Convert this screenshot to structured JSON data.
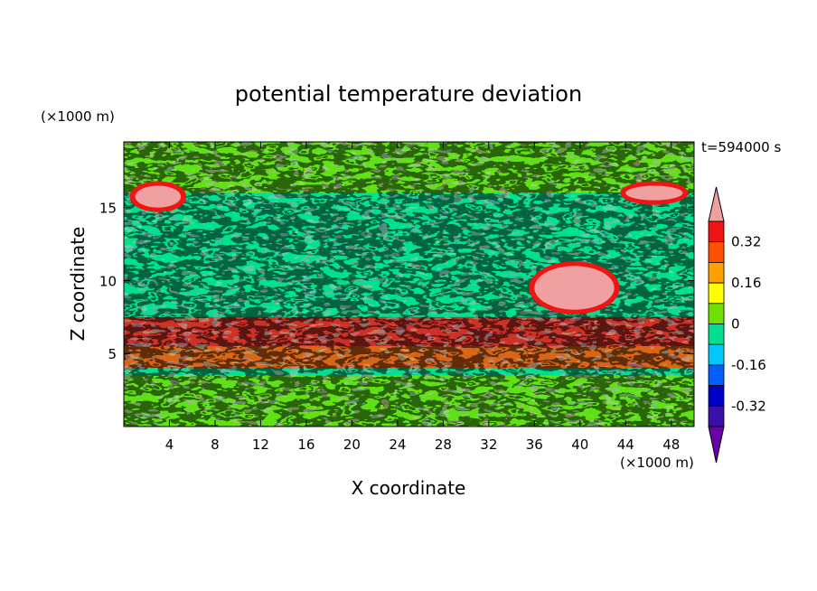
{
  "chart_data": {
    "type": "heatmap",
    "title": "potential temperature deviation",
    "xlabel": "X coordinate",
    "ylabel": "Z coordinate",
    "x_unit": "(×1000 m)",
    "y_unit": "(×1000 m)",
    "time_label": "t=594000 s",
    "xlim": [
      0,
      50
    ],
    "ylim": [
      0,
      19.5
    ],
    "x_ticks": [
      4,
      8,
      12,
      16,
      20,
      24,
      28,
      32,
      36,
      40,
      44,
      48
    ],
    "y_ticks": [
      5,
      10,
      15
    ],
    "grid": false,
    "colorbar": {
      "orientation": "vertical",
      "placement": "right",
      "levels": [
        -0.4,
        -0.32,
        -0.24,
        -0.16,
        -0.08,
        0,
        0.08,
        0.16,
        0.24,
        0.32,
        0.4
      ],
      "labels": [
        "0.32",
        "0.16",
        "0",
        "-0.16",
        "-0.32"
      ],
      "label_values": [
        0.32,
        0.16,
        0,
        -0.16,
        -0.32
      ],
      "colors": [
        "#6a00a8",
        "#3b10a8",
        "#0000c8",
        "#0060ff",
        "#00c8ff",
        "#00e090",
        "#70e000",
        "#ffff00",
        "#ffa000",
        "#ff5000",
        "#f01414",
        "#f0a0a0"
      ],
      "extend": "both"
    },
    "field_summary": [
      {
        "z_range": [
          16,
          19.5
        ],
        "value": 0.02
      },
      {
        "z_range": [
          9,
          16
        ],
        "value": 0.0
      },
      {
        "z_range": [
          5.5,
          7.5
        ],
        "value": 0.35
      },
      {
        "z_range": [
          4,
          5.5
        ],
        "value": 0.3
      },
      {
        "z_range": [
          0,
          3.5
        ],
        "value": 0.05
      }
    ],
    "warm_features": [
      {
        "name": "upper-left warm blob",
        "x": [
          1,
          5
        ],
        "z": [
          15,
          16.5
        ],
        "value": 0.45
      },
      {
        "name": "upper-right warm blob",
        "x": [
          44,
          49
        ],
        "z": [
          15.5,
          16.5
        ],
        "value": 0.45
      },
      {
        "name": "mid-right warm patch",
        "x": [
          36,
          43
        ],
        "z": [
          8,
          11
        ],
        "value": 0.45
      }
    ]
  }
}
